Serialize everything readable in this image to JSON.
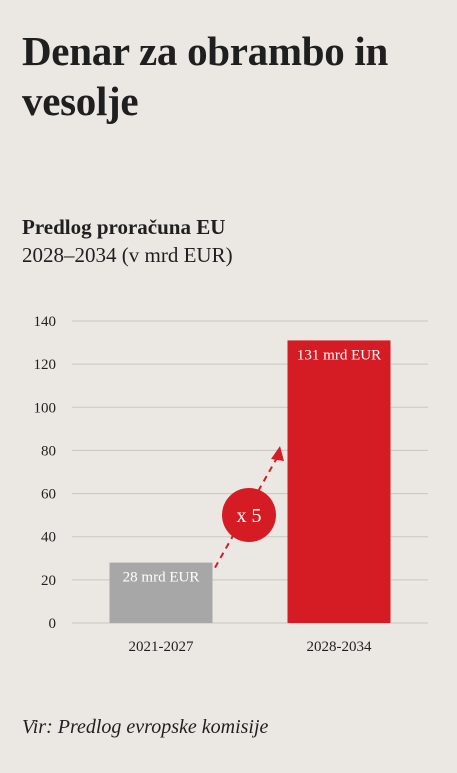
{
  "title": "Denar za obrambo in vesolje",
  "subtitle": {
    "bold": "Predlog proračuna EU",
    "line2_bold": "2028–2034",
    "unit": " (v mrd EUR)"
  },
  "source": "Vir: Predlog evropske komisije",
  "colors": {
    "background": "#ebe8e4",
    "bar_old": "#a7a7a7",
    "bar_new": "#d51c24",
    "grid": "#c9c6c1",
    "text": "#1f1f1f"
  },
  "chart_data": {
    "type": "bar",
    "categories": [
      "2021-2027",
      "2028-2034"
    ],
    "values": [
      28,
      131
    ],
    "data_labels": [
      "28 mrd EUR",
      "131 mrd EUR"
    ],
    "ylim": [
      0,
      140
    ],
    "yticks": [
      0,
      20,
      40,
      60,
      80,
      100,
      120,
      140
    ],
    "grid": true,
    "annotation": "x 5"
  }
}
